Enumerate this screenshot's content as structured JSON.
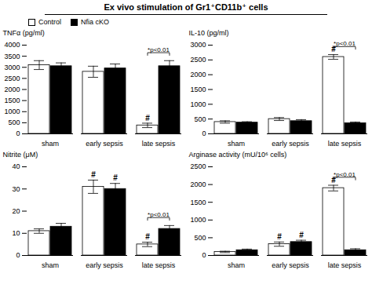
{
  "title": "Ex vivo stimulation of Gr1⁺CD11b⁺ cells",
  "chart_data": [
    {
      "type": "bar",
      "ylabel": "TNFα (pg/ml)",
      "categories": [
        "sham",
        "early sepsis",
        "late sepsis"
      ],
      "series": [
        {
          "name": "Control",
          "color": "white",
          "values": [
            3100,
            2800,
            380
          ],
          "errors": [
            200,
            250,
            100
          ]
        },
        {
          "name": "Nfia cKO",
          "color": "black",
          "values": [
            3050,
            2950,
            3050
          ],
          "errors": [
            150,
            200,
            250
          ]
        }
      ],
      "ylim": [
        0,
        4000
      ],
      "yticks": [
        0,
        500,
        1000,
        1500,
        2000,
        2500,
        3000,
        3500,
        4000
      ],
      "annotations": [
        {
          "text": "#",
          "category": "late sepsis",
          "series": "Control"
        },
        {
          "text": "*p<0.01",
          "category": "late sepsis"
        }
      ],
      "legend": "upper left"
    },
    {
      "type": "bar",
      "ylabel": "IL-10 (pg/ml)",
      "categories": [
        "sham",
        "early sepsis",
        "late sepsis"
      ],
      "series": [
        {
          "name": "Control",
          "color": "white",
          "values": [
            400,
            500,
            2600
          ],
          "errors": [
            40,
            50,
            80
          ]
        },
        {
          "name": "Nfia cKO",
          "color": "black",
          "values": [
            380,
            430,
            360
          ],
          "errors": [
            30,
            50,
            40
          ]
        }
      ],
      "ylim": [
        0,
        3000
      ],
      "yticks": [
        0,
        500,
        1000,
        1500,
        2000,
        2500,
        3000
      ],
      "annotations": [
        {
          "text": "#",
          "category": "late sepsis",
          "series": "Control"
        },
        {
          "text": "*p<0.01",
          "category": "late sepsis"
        }
      ]
    },
    {
      "type": "bar",
      "ylabel": "Nitrite (μM)",
      "categories": [
        "sham",
        "early sepsis",
        "late sepsis"
      ],
      "series": [
        {
          "name": "Control",
          "color": "white",
          "values": [
            11,
            31,
            5
          ],
          "errors": [
            1,
            3,
            1
          ]
        },
        {
          "name": "Nfia cKO",
          "color": "black",
          "values": [
            13,
            30,
            12
          ],
          "errors": [
            1.5,
            2.5,
            1.5
          ]
        }
      ],
      "ylim": [
        0,
        40
      ],
      "yticks": [
        0,
        10,
        20,
        30,
        40
      ],
      "annotations": [
        {
          "text": "#",
          "category": "early sepsis",
          "series": "Control"
        },
        {
          "text": "#",
          "category": "late sepsis",
          "series": "Control"
        },
        {
          "text": "#",
          "category": "early sepsis",
          "series": "Nfia cKO"
        },
        {
          "text": "*p<0.01",
          "category": "late sepsis"
        }
      ]
    },
    {
      "type": "bar",
      "ylabel": "Arginase activity (mU/10⁶ cells)",
      "categories": [
        "sham",
        "early sepsis",
        "late sepsis"
      ],
      "series": [
        {
          "name": "Control",
          "color": "white",
          "values": [
            100,
            320,
            1900
          ],
          "errors": [
            20,
            60,
            80
          ]
        },
        {
          "name": "Nfia cKO",
          "color": "black",
          "values": [
            150,
            380,
            150
          ],
          "errors": [
            30,
            50,
            40
          ]
        }
      ],
      "ylim": [
        0,
        2500
      ],
      "yticks": [
        0,
        500,
        1000,
        1500,
        2000,
        2500
      ],
      "annotations": [
        {
          "text": "#",
          "category": "early sepsis",
          "series": "Control"
        },
        {
          "text": "#",
          "category": "late sepsis",
          "series": "Control"
        },
        {
          "text": "#",
          "category": "early sepsis",
          "series": "Nfia cKO"
        },
        {
          "text": "*p<0.01",
          "category": "late sepsis"
        }
      ]
    }
  ]
}
